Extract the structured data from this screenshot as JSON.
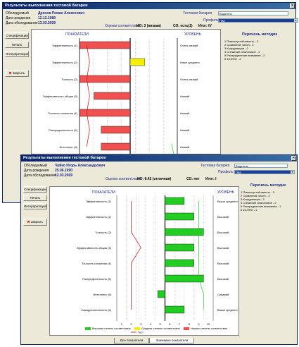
{
  "win1": {
    "title": "Результаты выполнения тестовой батареи",
    "examinee_label": "Обследуемый",
    "examinee_name": "Дренов Роман Алексеевич",
    "birth_label": "Дата рождения",
    "birth_date": "12.12.1989",
    "exam_label": "Дата обследования",
    "exam_date": "13.03.2009",
    "battery_label": "Тестовая батарея",
    "battery_value": "Водитель",
    "profile_label": "Профиль",
    "profile_value": "ПВК",
    "ratings_label": "Оценки соответствия:",
    "io": "ИО: 3 (низкая)",
    "so": "СО: есть(1)",
    "total": "Итог: IV",
    "buttons": [
      "Спецификации",
      "Печать",
      "Интерпретация"
    ],
    "close": "Закрыть",
    "col_indicators": "ПОКАЗАТЕЛИ",
    "col_level": "УРОВЕНЬ",
    "methods_title": "Перечень методик",
    "methods": [
      "1 Помехоустойчивость - 3",
      "2 Сравнение чисел - 2",
      "3 Координация - 2",
      "4 Слежение аналоговое - 2",
      "5 Распределение внимания - 2",
      "6 16-ФЛО - 2"
    ],
    "rows": [
      {
        "label": "Эффективность (1)",
        "level": "Очень низкий",
        "value": -7
      },
      {
        "label": "Эффективность (2)",
        "level": "Ниже среднего",
        "value": 2
      },
      {
        "label": "Точность (2)",
        "level": "Очень низкий",
        "value": -7
      },
      {
        "label": "Эффективность общая (3)",
        "level": "Низкий",
        "value": -5
      },
      {
        "label": "Точность слежения (4)",
        "level": "Низкий",
        "value": -7
      },
      {
        "label": "Распределенность (5)",
        "level": "Низкий",
        "value": -4
      },
      {
        "label": "Интеллект (6)",
        "level": "Низкий",
        "value": -4
      }
    ]
  },
  "win2": {
    "title": "Результаты выполнения тестовой батареи",
    "examinee_label": "Обследуемый",
    "examinee_name": "Чуйко Игорь Александрович",
    "birth_label": "Дата рождения",
    "birth_date": "25.06.1990",
    "exam_label": "Дата обследования",
    "exam_date": "12.03.2009",
    "battery_label": "Тестовая батарея",
    "battery_value": "Водитель",
    "profile_label": "Профиль",
    "profile_value": "ПВК",
    "ratings_label": "Оценки соответствия:",
    "io": "ИО: 8.42 (отличная)",
    "so": "СО: нет",
    "total": "Итог: I",
    "buttons": [
      "Спецификации",
      "Печать",
      "Интерпретация"
    ],
    "close": "Закрыть",
    "col_indicators": "ПОКАЗАТЕЛИ",
    "col_level": "УРОВЕНЬ",
    "methods_title": "Перечень методик",
    "methods": [
      "1 Помехоустойчивость - 3",
      "2 Сравнение чисел - 3",
      "3 Координация - 2",
      "4 Слежение аналоговое - 2",
      "5 Распределение внимания - 1",
      "6 16-ФЛО - 2"
    ],
    "rows": [
      {
        "label": "Эффективность (1)",
        "level": "Выше среднего",
        "value": 7
      },
      {
        "label": "Эффективность (2)",
        "level": "Высокий",
        "value": 8
      },
      {
        "label": "Точность (2)",
        "level": "Высокий",
        "value": 9
      },
      {
        "label": "Эффективность общая (3)",
        "level": "Высокий",
        "value": 8
      },
      {
        "label": "Точность слежения (4)",
        "level": "Высокий",
        "value": 8
      },
      {
        "label": "Распределенность (5)",
        "level": "Высокий",
        "value": 9
      },
      {
        "label": "Интеллект (6)",
        "level": "Средний",
        "value": 5
      },
      {
        "label": "Самодостаточность (6)",
        "level": "Выше среднего",
        "value": 7
      }
    ],
    "axis_ticks": [
      "1",
      "2",
      "3",
      "4",
      "5",
      "6",
      "7",
      "8",
      "9",
      "10"
    ],
    "legend": {
      "high": "Высокая степень соответствия",
      "mid": "Средняя степень соответствия",
      "low": "Низкая степень соответствия",
      "test": "Тест",
      "optimum": "Оптимум"
    },
    "tabs": [
      "Все показатели",
      "Значимые показатели"
    ]
  },
  "colors": {
    "red": "#f05050",
    "green": "#22cc22",
    "yellow": "#f4f000",
    "title": "#0a246a",
    "accent": "#1a2a8c"
  }
}
